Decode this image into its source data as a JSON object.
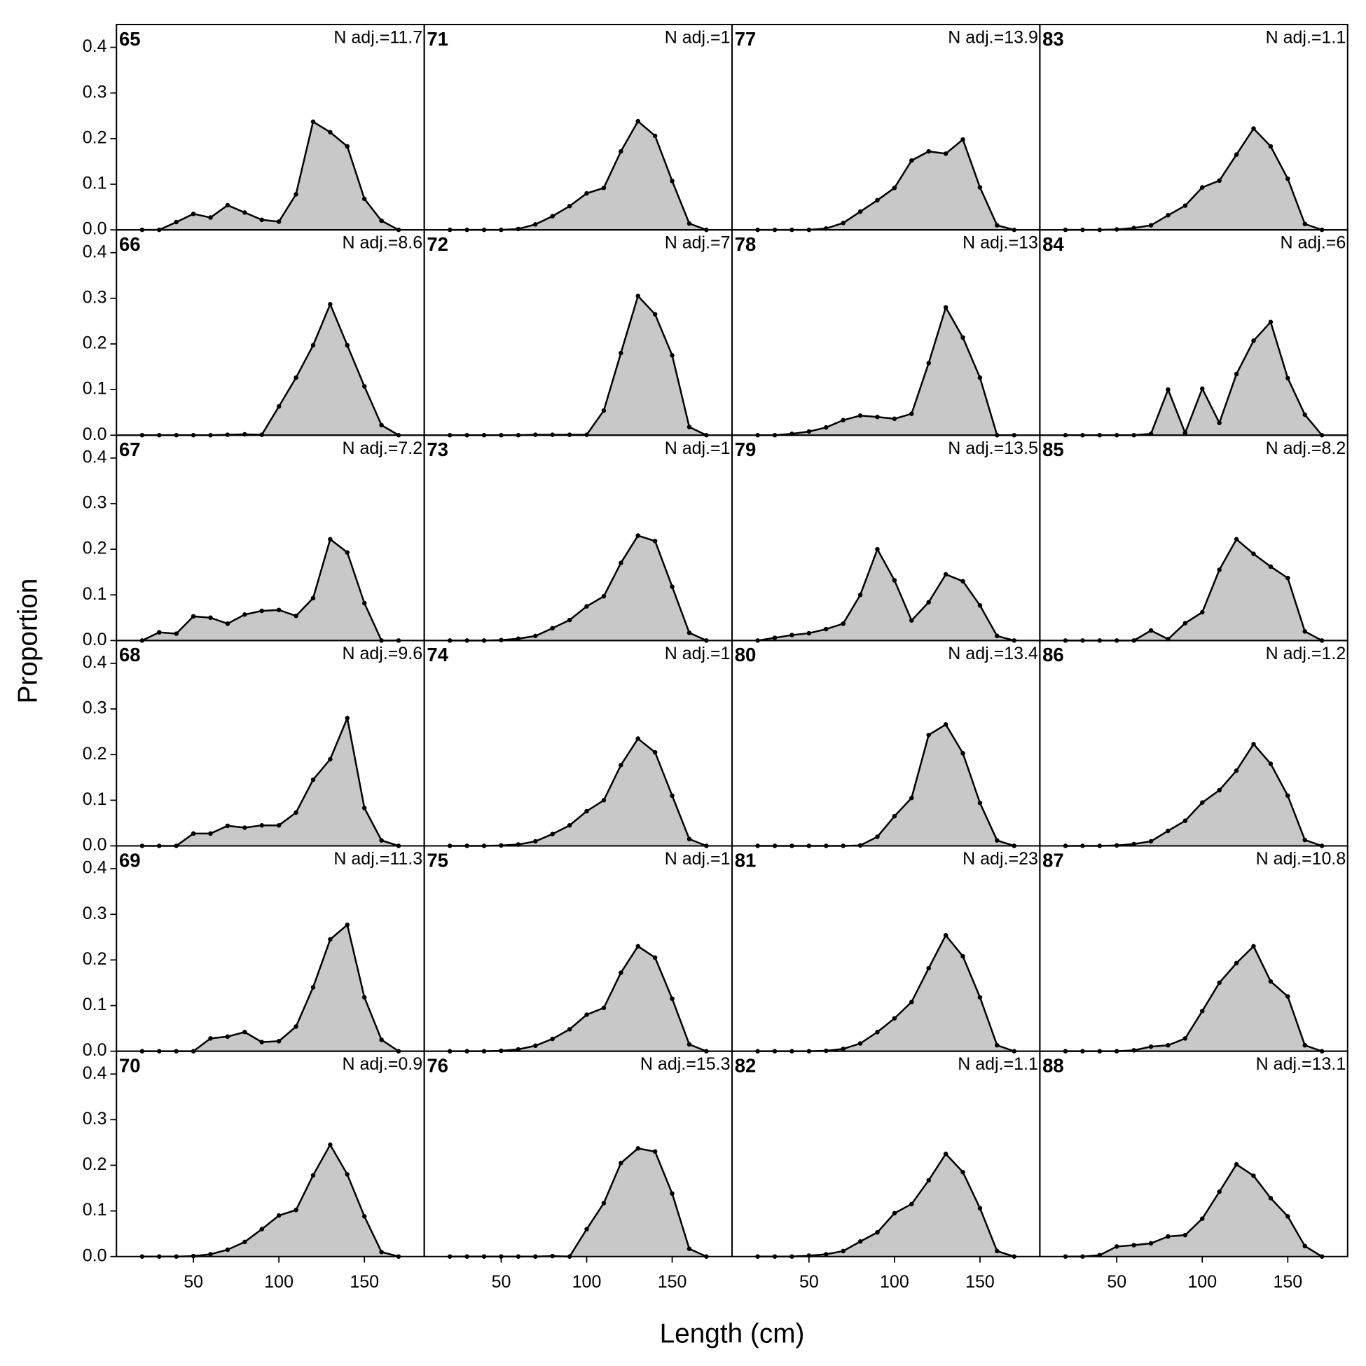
{
  "chart_data": {
    "type": "area",
    "xlabel": "Length (cm)",
    "ylabel": "Proportion",
    "x": [
      20,
      30,
      40,
      50,
      60,
      70,
      80,
      90,
      100,
      110,
      120,
      130,
      140,
      150,
      160,
      170
    ],
    "xlim": [
      5,
      185
    ],
    "ylim": [
      0,
      0.45
    ],
    "xticks": [
      50,
      100,
      150
    ],
    "yticks": [
      {
        "value": 0,
        "label": "0.0"
      },
      0.1,
      0.2,
      0.3,
      0.4
    ],
    "fill": "#c8c8c8",
    "color": "#000000",
    "panels": [
      {
        "title": "65",
        "note": "N adj.=11.7",
        "values": [
          0,
          0,
          0.017,
          0.035,
          0.027,
          0.054,
          0.038,
          0.022,
          0.018,
          0.078,
          0.237,
          0.214,
          0.183,
          0.068,
          0.02,
          0
        ]
      },
      {
        "title": "66",
        "note": "N adj.=8.6",
        "values": [
          0,
          0,
          0,
          0,
          0,
          0.001,
          0.002,
          0.001,
          0.063,
          0.126,
          0.197,
          0.287,
          0.197,
          0.107,
          0.022,
          0
        ]
      },
      {
        "title": "67",
        "note": "N adj.=7.2",
        "values": [
          0,
          0.018,
          0.015,
          0.053,
          0.05,
          0.037,
          0.057,
          0.065,
          0.067,
          0.054,
          0.093,
          0.222,
          0.193,
          0.082,
          0,
          0
        ]
      },
      {
        "title": "68",
        "note": "N adj.=9.6",
        "values": [
          0,
          0,
          0,
          0.027,
          0.027,
          0.044,
          0.04,
          0.045,
          0.045,
          0.073,
          0.145,
          0.19,
          0.28,
          0.083,
          0.012,
          0
        ]
      },
      {
        "title": "69",
        "note": "N adj.=11.3",
        "values": [
          0,
          0,
          0,
          0,
          0.028,
          0.032,
          0.042,
          0.02,
          0.022,
          0.054,
          0.14,
          0.245,
          0.277,
          0.118,
          0.025,
          0
        ]
      },
      {
        "title": "70",
        "note": "N adj.=0.9",
        "values": [
          0,
          0,
          0,
          0.001,
          0.005,
          0.015,
          0.032,
          0.06,
          0.09,
          0.102,
          0.178,
          0.245,
          0.18,
          0.088,
          0.01,
          0
        ]
      },
      {
        "title": "71",
        "note": "N adj.=1",
        "values": [
          0,
          0,
          0,
          0,
          0.002,
          0.012,
          0.03,
          0.052,
          0.08,
          0.092,
          0.172,
          0.238,
          0.206,
          0.107,
          0.014,
          0
        ]
      },
      {
        "title": "72",
        "note": "N adj.=7",
        "values": [
          0,
          0,
          0,
          0,
          0,
          0.001,
          0.001,
          0.001,
          0.001,
          0.054,
          0.18,
          0.305,
          0.265,
          0.175,
          0.018,
          0
        ]
      },
      {
        "title": "73",
        "note": "N adj.=1",
        "values": [
          0,
          0,
          0,
          0.001,
          0.004,
          0.01,
          0.027,
          0.045,
          0.075,
          0.097,
          0.17,
          0.23,
          0.218,
          0.118,
          0.017,
          0
        ]
      },
      {
        "title": "74",
        "note": "N adj.=1",
        "values": [
          0,
          0,
          0,
          0.001,
          0.003,
          0.01,
          0.026,
          0.045,
          0.076,
          0.1,
          0.177,
          0.235,
          0.205,
          0.11,
          0.015,
          0
        ]
      },
      {
        "title": "75",
        "note": "N adj.=1",
        "values": [
          0,
          0,
          0,
          0.001,
          0.004,
          0.012,
          0.027,
          0.048,
          0.08,
          0.095,
          0.172,
          0.23,
          0.205,
          0.115,
          0.015,
          0
        ]
      },
      {
        "title": "76",
        "note": "N adj.=15.3",
        "values": [
          0,
          0,
          0,
          0,
          0,
          0,
          0.001,
          0,
          0.06,
          0.117,
          0.205,
          0.237,
          0.23,
          0.138,
          0.017,
          0
        ]
      },
      {
        "title": "77",
        "note": "N adj.=13.9",
        "values": [
          0,
          0,
          0,
          0,
          0.003,
          0.015,
          0.04,
          0.065,
          0.092,
          0.152,
          0.172,
          0.167,
          0.198,
          0.093,
          0.01,
          0
        ]
      },
      {
        "title": "78",
        "note": "N adj.=13",
        "values": [
          0,
          0,
          0.003,
          0.008,
          0.017,
          0.033,
          0.043,
          0.04,
          0.036,
          0.047,
          0.158,
          0.28,
          0.214,
          0.126,
          0,
          0
        ]
      },
      {
        "title": "79",
        "note": "N adj.=13.5",
        "values": [
          0,
          0.006,
          0.012,
          0.016,
          0.025,
          0.037,
          0.1,
          0.2,
          0.132,
          0.044,
          0.084,
          0.145,
          0.13,
          0.077,
          0.01,
          0
        ]
      },
      {
        "title": "80",
        "note": "N adj.=13.4",
        "values": [
          0,
          0,
          0,
          0,
          0,
          0,
          0.001,
          0.02,
          0.065,
          0.105,
          0.243,
          0.266,
          0.203,
          0.094,
          0.012,
          0
        ]
      },
      {
        "title": "81",
        "note": "N adj.=23",
        "values": [
          0,
          0,
          0,
          0,
          0.001,
          0.005,
          0.017,
          0.042,
          0.072,
          0.108,
          0.182,
          0.254,
          0.208,
          0.118,
          0.013,
          0
        ]
      },
      {
        "title": "82",
        "note": "N adj.=1.1",
        "values": [
          0,
          0,
          0,
          0.002,
          0.005,
          0.012,
          0.033,
          0.053,
          0.095,
          0.115,
          0.167,
          0.225,
          0.185,
          0.106,
          0.012,
          0
        ]
      },
      {
        "title": "83",
        "note": "N adj.=1.1",
        "values": [
          0,
          0,
          0,
          0.001,
          0.004,
          0.01,
          0.032,
          0.053,
          0.093,
          0.108,
          0.165,
          0.222,
          0.183,
          0.112,
          0.013,
          0
        ]
      },
      {
        "title": "84",
        "note": "N adj.=6",
        "values": [
          0,
          0,
          0,
          0,
          0,
          0.003,
          0.1,
          0.005,
          0.102,
          0.027,
          0.134,
          0.207,
          0.248,
          0.125,
          0.045,
          0
        ]
      },
      {
        "title": "85",
        "note": "N adj.=8.2",
        "values": [
          0,
          0,
          0,
          0,
          0,
          0.022,
          0.003,
          0.038,
          0.062,
          0.155,
          0.222,
          0.19,
          0.162,
          0.137,
          0.02,
          0
        ]
      },
      {
        "title": "86",
        "note": "N adj.=1.2",
        "values": [
          0,
          0,
          0,
          0.001,
          0.004,
          0.01,
          0.033,
          0.055,
          0.095,
          0.122,
          0.165,
          0.223,
          0.18,
          0.11,
          0.013,
          0
        ]
      },
      {
        "title": "87",
        "note": "N adj.=10.8",
        "values": [
          0,
          0,
          0,
          0,
          0.002,
          0.01,
          0.013,
          0.028,
          0.088,
          0.15,
          0.193,
          0.23,
          0.153,
          0.12,
          0.013,
          0
        ]
      },
      {
        "title": "88",
        "note": "N adj.=13.1",
        "values": [
          0,
          0,
          0.003,
          0.022,
          0.025,
          0.029,
          0.044,
          0.047,
          0.083,
          0.142,
          0.202,
          0.177,
          0.128,
          0.088,
          0.023,
          0
        ]
      }
    ]
  }
}
